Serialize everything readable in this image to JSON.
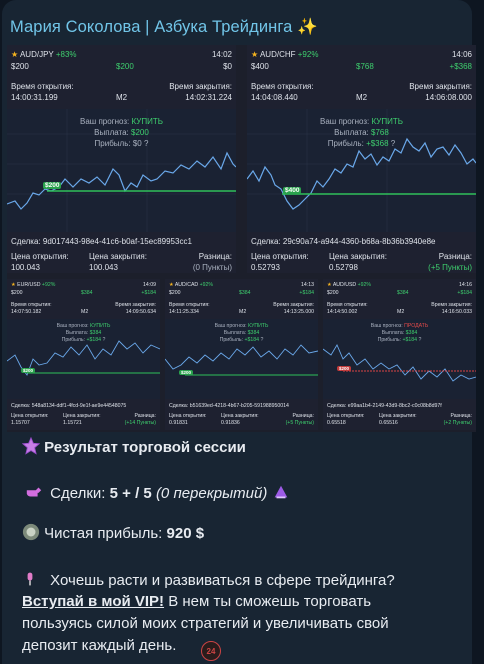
{
  "sender": {
    "name": "Мария Соколова | Азбука Трейдинга",
    "spark": "✨"
  },
  "labels": {
    "open_time": "Время открытия:",
    "close_time": "Время закрытия:",
    "forecast": "Ваш прогноз:",
    "payout": "Выплата:",
    "profit": "Прибыль:",
    "deal": "Сделка:",
    "open_price": "Цена открытия:",
    "close_price": "Цена закрытия:",
    "difference": "Разница:"
  },
  "trades": [
    {
      "pair": "AUD/JPY",
      "percent": "+83%",
      "time": "14:02",
      "stake": "$200",
      "payout_top": "$200",
      "result_top": "$0",
      "open_time": "14:00:31.199",
      "expiry": "M2",
      "close_time": "14:02:31.224",
      "direction": "КУПИТЬ",
      "payout": "$200",
      "profit": "$0",
      "deal_id": "9d017443-98e4-41c6-b0af-15ec89953cc1",
      "open_price": "100.043",
      "close_price": "100.043",
      "difference": "(0 Пункты)",
      "badge": "$200"
    },
    {
      "pair": "AUD/CHF",
      "percent": "+92%",
      "time": "14:06",
      "stake": "$400",
      "payout_top": "$768",
      "result_top": "+$368",
      "open_time": "14:04:08.440",
      "expiry": "M2",
      "close_time": "14:06:08.000",
      "direction": "КУПИТЬ",
      "payout": "$768",
      "profit": "+$368",
      "deal_id": "29c90a74-a944-4360-b68a-8b36b3940e8e",
      "open_price": "0.52793",
      "close_price": "0.52798",
      "difference": "(+5 Пункты)",
      "badge": "$400"
    },
    {
      "pair": "EUR/USD",
      "percent": "+92%",
      "time": "14:09",
      "stake": "$200",
      "payout_top": "$384",
      "result_top": "+$184",
      "open_time": "14:07:50.182",
      "expiry": "M2",
      "close_time": "14:09:50.634",
      "direction": "КУПИТЬ",
      "payout": "$384",
      "profit": "+$184",
      "deal_id": "548a8134-ddf1-4fcd-9e1f-ae9e44548075",
      "open_price": "1.15707",
      "close_price": "1.15721",
      "difference": "(+14 Пункты)",
      "badge": "$200"
    },
    {
      "pair": "AUD/CAD",
      "percent": "+92%",
      "time": "14:13",
      "stake": "$200",
      "payout_top": "$384",
      "result_top": "+$184",
      "open_time": "14:11:25.334",
      "expiry": "M2",
      "close_time": "14:13:25.000",
      "direction": "КУПИТЬ",
      "payout": "$384",
      "profit": "+$184",
      "deal_id": "b51639ed-4218-4b67-b205-591988950014",
      "open_price": "0.91831",
      "close_price": "0.91836",
      "difference": "(+5 Пункты)",
      "badge": "$200"
    },
    {
      "pair": "AUD/USD",
      "percent": "+92%",
      "time": "14:16",
      "stake": "$200",
      "payout_top": "$384",
      "result_top": "+$184",
      "open_time": "14:14:50.002",
      "expiry": "M2",
      "close_time": "14:16:50.033",
      "direction": "ПРОДАТЬ",
      "payout": "$384",
      "profit": "+$184",
      "deal_id": "e99aa1b4-2149-43d9-8bc2-c0c08b8d97f",
      "open_price": "0.65518",
      "close_price": "0.65516",
      "difference": "(+2 Пункты)",
      "badge": "$200"
    }
  ],
  "message": {
    "title": "Результат торговой сессии",
    "deals_label": "Сделки:",
    "deals_value": "5 + / 5",
    "deals_note": "(0 перекрытий)",
    "profit_label": "Чистая прибыль:",
    "profit_value": "920 $",
    "line1": "Хочешь расти и развиваться в сфере трейдинга?",
    "vip_link": "Вступай в мой VIP!",
    "line2_rest": " В нем ты сможешь торговать",
    "line3": "пользуясь силой моих стратегий и увеличивать свой",
    "line4": "депозит каждый день.",
    "reply_counter": "24"
  },
  "colors": {
    "accent": "#71c5e8",
    "green": "#3ecf6e",
    "red": "#e24a4a",
    "bg": "#0e1621",
    "bubble": "#182533"
  }
}
